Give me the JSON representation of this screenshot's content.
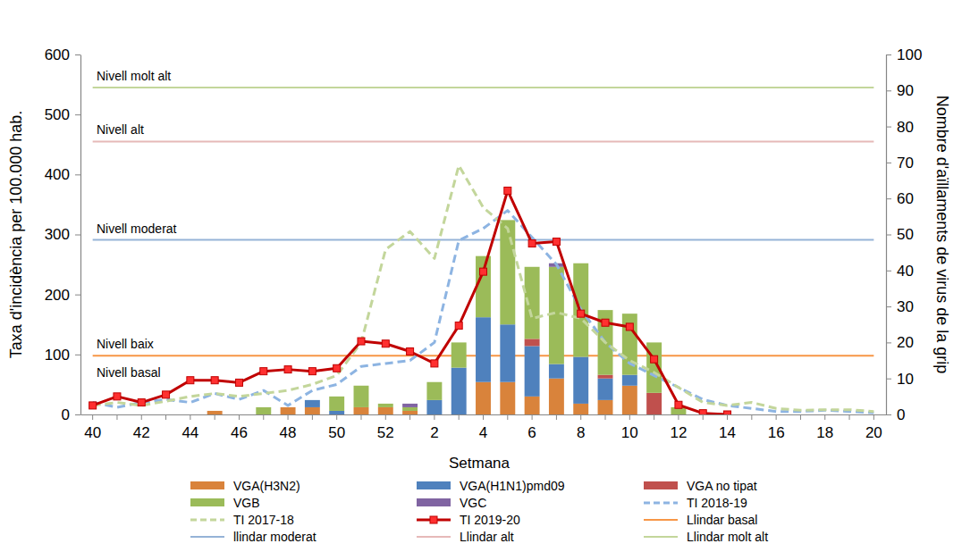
{
  "chart_data": {
    "type": "bar",
    "x_label": "Setmana",
    "y_label": "Taxa d'incidència per 100.000 hab.",
    "y2_label": "Nombre d'aïllaments de virus de la grip",
    "categories": [
      "40",
      null,
      "42",
      null,
      "44",
      null,
      "46",
      null,
      "48",
      null,
      "50",
      null,
      "52",
      null,
      "2",
      null,
      "4",
      null,
      "6",
      null,
      "8",
      null,
      "10",
      null,
      "12",
      null,
      "14",
      null,
      "16",
      null,
      "18",
      null,
      "20"
    ],
    "ylim": [
      0,
      600
    ],
    "yticks": [
      0,
      100,
      200,
      300,
      400,
      500,
      600
    ],
    "y2lim": [
      0,
      100
    ],
    "y2ticks": [
      0,
      10,
      20,
      30,
      40,
      50,
      60,
      70,
      80,
      90,
      100
    ],
    "stacked": true,
    "grid": false,
    "legend": "bottom",
    "series": [
      {
        "name": "VGA(H3N2)",
        "type": "bar",
        "axis": "y2",
        "color": "#D9833B",
        "values": [
          0,
          0,
          0,
          0,
          0,
          1,
          0,
          0,
          2,
          2,
          0,
          2,
          2,
          1,
          0,
          0,
          9,
          9,
          5,
          10,
          3,
          4,
          8,
          0,
          0,
          0,
          0,
          0,
          0,
          0,
          0,
          0,
          0
        ]
      },
      {
        "name": "VGA(H1N1)pmd09",
        "type": "bar",
        "axis": "y2",
        "color": "#4F81BD",
        "values": [
          0,
          0,
          0,
          0,
          0,
          0,
          0,
          0,
          0,
          2,
          1,
          0,
          0,
          0,
          4,
          13,
          18,
          16,
          14,
          4,
          13,
          6,
          3,
          0,
          0,
          0,
          0,
          0,
          0,
          0,
          0,
          0,
          0
        ]
      },
      {
        "name": "VGA no tipat",
        "type": "bar",
        "axis": "y2",
        "color": "#C0504D",
        "values": [
          0,
          0,
          0,
          0,
          0,
          0,
          0,
          0,
          0,
          0,
          0,
          0,
          0,
          0,
          0,
          0,
          0,
          0,
          2,
          0,
          0,
          1,
          0,
          6,
          0,
          0,
          0,
          0,
          0,
          0,
          0,
          0,
          0
        ]
      },
      {
        "name": "VGB",
        "type": "bar",
        "axis": "y2",
        "color": "#9BBB59",
        "values": [
          0,
          0,
          0,
          0,
          0,
          0,
          0,
          2,
          0,
          0,
          4,
          6,
          1,
          1,
          5,
          7,
          17,
          29,
          20,
          27,
          26,
          18,
          17,
          14,
          2,
          0,
          0,
          0,
          0,
          0,
          0,
          0,
          0
        ]
      },
      {
        "name": "VGC",
        "type": "bar",
        "axis": "y2",
        "color": "#8064A2",
        "values": [
          0,
          0,
          0,
          0,
          0,
          0,
          0,
          0,
          0,
          0,
          0,
          0,
          0,
          1,
          0,
          0,
          0,
          0,
          0,
          1,
          0,
          0,
          0,
          0,
          0,
          0,
          0,
          0,
          0,
          0,
          0,
          0,
          0
        ]
      },
      {
        "name": "TI 2018-19",
        "type": "line",
        "line_style": "dashed",
        "color": "#8DB4E2",
        "values": [
          20,
          12,
          20,
          25,
          20,
          35,
          25,
          40,
          15,
          40,
          50,
          80,
          85,
          90,
          120,
          290,
          310,
          340,
          295,
          250,
          175,
          120,
          85,
          65,
          45,
          25,
          15,
          10,
          5,
          5,
          7,
          5,
          3
        ]
      },
      {
        "name": "TI 2017-18",
        "type": "line",
        "line_style": "dashed",
        "color": "#C3D69B",
        "values": [
          15,
          20,
          15,
          22,
          30,
          35,
          30,
          35,
          40,
          50,
          65,
          120,
          275,
          305,
          260,
          415,
          345,
          310,
          160,
          170,
          160,
          120,
          90,
          70,
          45,
          20,
          15,
          20,
          10,
          7,
          8,
          8,
          5
        ]
      },
      {
        "name": "TI 2019-20",
        "type": "line",
        "line_style": "solid",
        "marker": "square",
        "color": "#C00000",
        "values": [
          15,
          30,
          20,
          33,
          57,
          57,
          53,
          72,
          75,
          72,
          77,
          122,
          118,
          105,
          85,
          148,
          238,
          373,
          285,
          288,
          168,
          153,
          146,
          92,
          16,
          2,
          0,
          null,
          null,
          null,
          null,
          null,
          null
        ]
      }
    ],
    "reference_lines": [
      {
        "name": "Llindar basal",
        "value": 98,
        "color": "#F79646",
        "label": "Nivell baix",
        "label_below": "Nivell basal"
      },
      {
        "name": "llindar moderat",
        "value": 291,
        "color": "#95B3D7",
        "label": "Nivell moderat"
      },
      {
        "name": "Llindar alt",
        "value": 455,
        "color": "#E6B9B8",
        "label": "Nivell alt"
      },
      {
        "name": "Llindar molt alt",
        "value": 545,
        "color": "#C3D69B",
        "label": "Nivell molt alt"
      }
    ]
  }
}
